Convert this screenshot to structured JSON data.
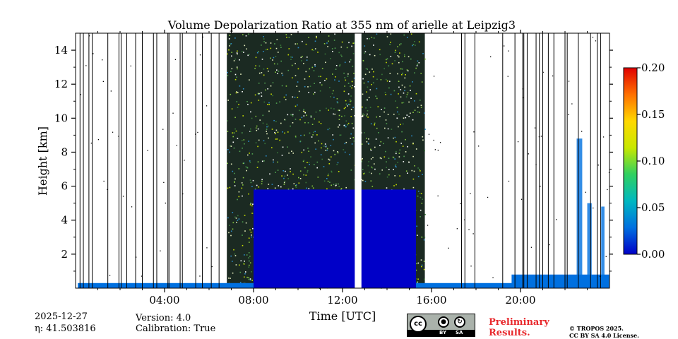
{
  "chart_data": {
    "type": "heatmap",
    "title": "Volume Depolarization Ratio at 355 nm of arielle at Leipzig3",
    "xlabel": "Time [UTC]",
    "ylabel": "Height [km]",
    "xlim": [
      0,
      24
    ],
    "ylim": [
      0,
      15
    ],
    "x_ticks": [
      4,
      8,
      12,
      16,
      20
    ],
    "x_tick_labels": [
      "04:00",
      "08:00",
      "12:00",
      "16:00",
      "20:00"
    ],
    "y_ticks": [
      2,
      4,
      6,
      8,
      10,
      12,
      14
    ],
    "y_tick_labels": [
      "2",
      "4",
      "6",
      "8",
      "10",
      "12",
      "14"
    ],
    "colorbar": {
      "vmin": 0.0,
      "vmax": 0.2,
      "ticks": [
        0.0,
        0.05,
        0.1,
        0.15,
        0.2
      ],
      "tick_labels": [
        "0.00",
        "0.05",
        "0.10",
        "0.15",
        "0.20"
      ],
      "colors": [
        "#0000c8",
        "#0070e0",
        "#00b8c0",
        "#30d060",
        "#c8e800",
        "#ffd800",
        "#ff7000",
        "#e00000"
      ]
    },
    "regions": [
      {
        "name": "surface-layer",
        "t_start": 0.1,
        "t_end": 24.0,
        "height_top_km": 0.3,
        "value": 0.02
      },
      {
        "name": "dense-signal-block",
        "t_start": 8.0,
        "t_end": 15.3,
        "height_top_km": 5.8,
        "value": 0.01
      },
      {
        "name": "evening-layer",
        "t_start": 19.6,
        "t_end": 24.0,
        "height_top_km": 0.8,
        "value": 0.02
      }
    ],
    "noise_band": {
      "t_start": 6.8,
      "t_end": 15.7,
      "height_top_km": 15.0
    },
    "data_gap": {
      "t_start": 12.55,
      "t_end": 12.85
    },
    "gap_lines_hours": [
      0.2,
      0.35,
      0.6,
      0.75,
      1.45,
      1.95,
      2.05,
      2.3,
      2.7,
      3.0,
      3.5,
      3.65,
      4.15,
      4.2,
      4.7,
      4.8,
      5.4,
      5.7,
      6.1,
      6.45,
      17.35,
      17.5,
      17.95,
      19.2,
      19.75,
      20.1,
      20.15,
      20.3,
      20.7,
      20.85,
      21.0,
      21.25,
      21.5,
      22.0,
      22.1,
      22.6,
      23.15,
      23.45,
      23.6
    ],
    "clouds": [
      {
        "t_center": 22.65,
        "height_top_km": 8.8,
        "width_h": 0.25
      },
      {
        "t_center": 23.1,
        "height_top_km": 5.0,
        "width_h": 0.2
      },
      {
        "t_center": 23.7,
        "height_top_km": 4.8,
        "width_h": 0.15
      }
    ]
  },
  "footer": {
    "date": "2025-12-27",
    "eta": "η: 41.503816",
    "version": "Version: 4.0",
    "calibration": "Calibration: True",
    "preliminary_line1": "Preliminary",
    "preliminary_line2": "Results.",
    "copyright_line1": "© TROPOS 2025.",
    "copyright_line2": "CC BY SA 4.0 License.",
    "license_badge": {
      "cc": "cc",
      "by": "BY",
      "sa": "SA"
    }
  }
}
